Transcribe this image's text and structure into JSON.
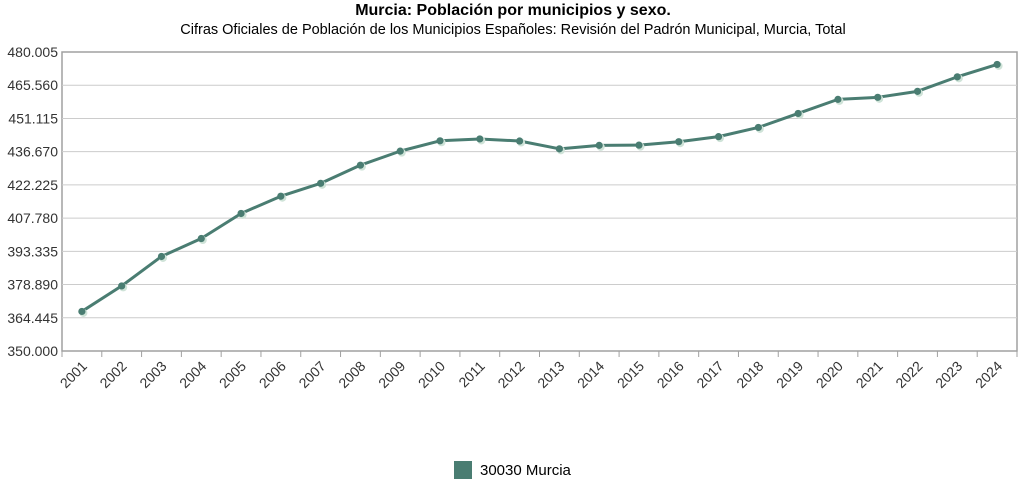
{
  "title": "Murcia: Población por municipios y sexo.",
  "subtitle": "Cifras Oficiales de Población de los Municipios Españoles: Revisión del Padrón Municipal, Murcia, Total",
  "colors": {
    "series": "#4a7d72",
    "grid": "#cccccc",
    "frame": "#a0a0a0"
  },
  "chart_data": {
    "type": "line",
    "title": "Murcia: Población por municipios y sexo.",
    "subtitle": "Cifras Oficiales de Población de los Municipios Españoles: Revisión del Padrón Municipal, Murcia, Total",
    "x": [
      "2001",
      "2002",
      "2003",
      "2004",
      "2005",
      "2006",
      "2007",
      "2008",
      "2009",
      "2010",
      "2011",
      "2012",
      "2013",
      "2014",
      "2015",
      "2016",
      "2017",
      "2018",
      "2019",
      "2020",
      "2021",
      "2022",
      "2023",
      "2024"
    ],
    "series": [
      {
        "name": "30030 Murcia",
        "values": [
          367200,
          378300,
          391100,
          398900,
          409800,
          417300,
          422900,
          430800,
          436900,
          441400,
          442200,
          441300,
          437900,
          439400,
          439500,
          441000,
          443200,
          447200,
          453300,
          459400,
          460300,
          462900,
          469200,
          474600
        ]
      }
    ],
    "yticks": [
      "350.000",
      "364.445",
      "378.890",
      "393.335",
      "407.780",
      "422.225",
      "436.670",
      "451.115",
      "465.560",
      "480.005"
    ],
    "ylim": [
      350000,
      480005
    ],
    "grid": true,
    "legend": "bottom-center"
  },
  "legend": {
    "label": "30030 Murcia"
  }
}
